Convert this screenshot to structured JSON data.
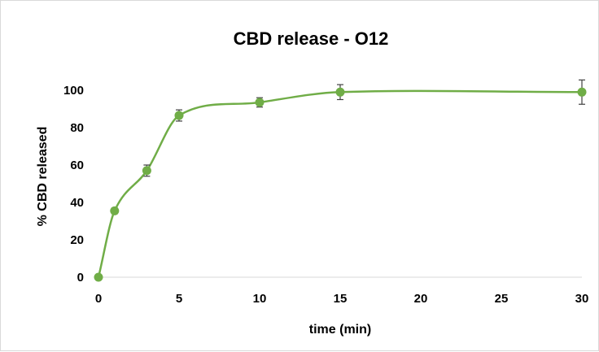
{
  "chart_data": {
    "type": "line",
    "title": "CBD release - O12",
    "xlabel": "time (min)",
    "ylabel": "% CBD released",
    "xlim": [
      0,
      30
    ],
    "ylim": [
      0,
      100
    ],
    "x_ticks": [
      "0",
      "5",
      "10",
      "15",
      "20",
      "25",
      "30"
    ],
    "y_ticks": [
      "0",
      "20",
      "40",
      "60",
      "80",
      "100"
    ],
    "grid": false,
    "legend": "none",
    "smoothed": true,
    "series": [
      {
        "color": "#70ad47",
        "x": [
          0,
          1,
          3,
          5,
          10,
          15,
          30
        ],
        "y": [
          0,
          35.5,
          57,
          86.5,
          93.5,
          99,
          99
        ],
        "error": [
          0,
          1.5,
          3,
          3,
          2.5,
          4,
          6.5
        ]
      }
    ]
  }
}
